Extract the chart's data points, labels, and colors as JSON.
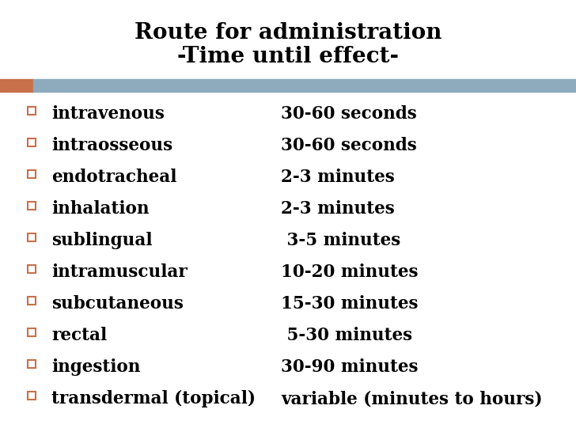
{
  "title_line1": "Route for administration",
  "title_line2": "-Time until effect-",
  "bg_color": "#ffffff",
  "bar_color_orange": "#c8704a",
  "bar_color_blue": "#8eabbe",
  "title_fontsize": 20,
  "item_fontsize": 15.5,
  "bullet_color": "#c8704a",
  "rows": [
    {
      "route": "intravenous",
      "time": "30-60 seconds"
    },
    {
      "route": "intraosseous",
      "time": "30-60 seconds"
    },
    {
      "route": "endotracheal",
      "time": "2-3 minutes"
    },
    {
      "route": "inhalation",
      "time": "2-3 minutes"
    },
    {
      "route": "sublingual",
      "time": " 3-5 minutes"
    },
    {
      "route": "intramuscular",
      "time": "10-20 minutes"
    },
    {
      "route": "subcutaneous",
      "time": "15-30 minutes"
    },
    {
      "route": "rectal",
      "time": " 5-30 minutes"
    },
    {
      "route": "ingestion",
      "time": "30-90 minutes"
    },
    {
      "route": "transdermal (topical)",
      "time": "variable (minutes to hours)"
    }
  ]
}
